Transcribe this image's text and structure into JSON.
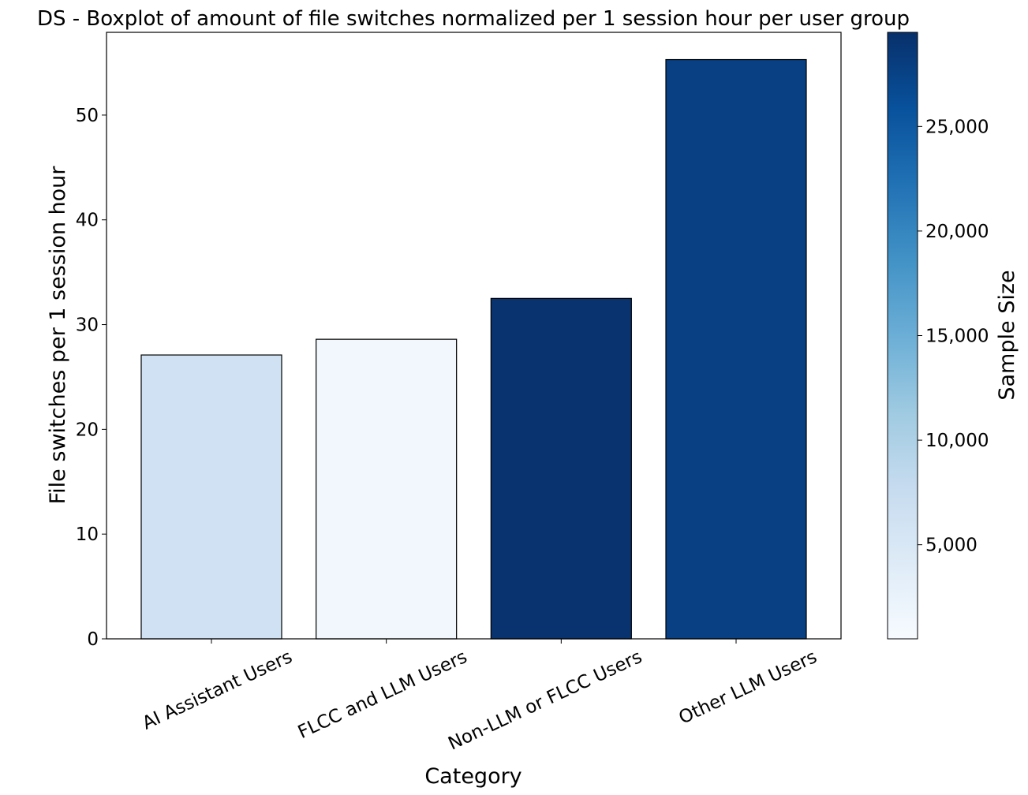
{
  "chart_data": {
    "type": "bar",
    "title": "DS - Boxplot of amount of file switches normalized per 1 session hour per user group",
    "xlabel": "Category",
    "ylabel": "File switches per 1 session hour",
    "categories": [
      "AI Assistant Users",
      "FLCC and LLM Users",
      "Non-LLM or FLCC Users",
      "Other LLM Users"
    ],
    "values": [
      27.1,
      28.6,
      32.5,
      55.3
    ],
    "sample_sizes": [
      6400,
      1300,
      29200,
      27700
    ],
    "ylim": [
      0,
      57.9
    ],
    "yticks": [
      "0",
      "10",
      "20",
      "30",
      "40",
      "50"
    ],
    "grid": false,
    "colorbar": {
      "label": "Sample Size",
      "range": [
        500,
        29500
      ],
      "ticks": [
        "5,000",
        "10,000",
        "15,000",
        "20,000",
        "25,000"
      ],
      "colormap": "Blues",
      "colors": [
        "#f7fbff",
        "#deebf7",
        "#c6dbef",
        "#9ecae1",
        "#6baed6",
        "#4292c6",
        "#2171b5",
        "#08519c",
        "#08306b"
      ]
    },
    "bar_edge_color": "#000000"
  }
}
